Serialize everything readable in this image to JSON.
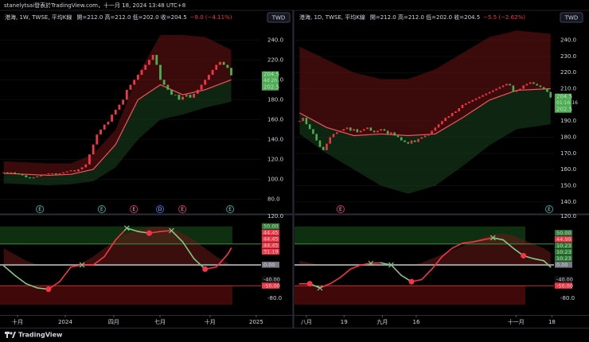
{
  "header": "stanelytsai發表於TradingView.com，十一月 18, 2024 13:48 UTC+8",
  "footer": {
    "brand": "TradingView"
  },
  "chart_data": [
    {
      "type": "candlestick",
      "title": "港海, 1W, TWSE, 平均K線",
      "legend": "開=212.0 高=212.0 低=202.0 收=204.5",
      "change": "−9.0 (−4.11%)",
      "currency": "TWD",
      "up_color": "#f23645",
      "down_color": "#4caf50",
      "ma_color": "#f7525f",
      "xlim": [
        -1,
        69
      ],
      "ylim": [
        66,
        269
      ],
      "yticks": [
        {
          "value": 240,
          "label": "240.0"
        },
        {
          "value": 220,
          "label": "220.0"
        },
        {
          "value": 200,
          "label": "200.0"
        },
        {
          "value": 180,
          "label": "180.0"
        },
        {
          "value": 160,
          "label": "160.0"
        },
        {
          "value": 140,
          "label": "140.0"
        },
        {
          "value": 120,
          "label": "120.0"
        },
        {
          "value": 100,
          "label": "100.0"
        },
        {
          "value": 80,
          "label": "80.0"
        }
      ],
      "xticks": [
        {
          "value": 3.7,
          "label": "十月"
        },
        {
          "value": 16.5,
          "label": "2024"
        },
        {
          "value": 29.5,
          "label": "四月"
        },
        {
          "value": 41.9,
          "label": "七月"
        },
        {
          "value": 55.3,
          "label": "十月"
        },
        {
          "value": 67.7,
          "label": "2025"
        }
      ],
      "closes": [
        107,
        106,
        107,
        106,
        105,
        104,
        102,
        101,
        102,
        103,
        104,
        105,
        106,
        106,
        105,
        106,
        107,
        108,
        109,
        108,
        110,
        112,
        115,
        125,
        135,
        145,
        150,
        155,
        158,
        165,
        170,
        175,
        180,
        190,
        195,
        200,
        205,
        210,
        215,
        220,
        225,
        215,
        200,
        195,
        190,
        185,
        185,
        180,
        183,
        185,
        182,
        186,
        190,
        195,
        200,
        205,
        210,
        215,
        218,
        215,
        212,
        204.5
      ],
      "band_index": [
        0,
        6,
        12,
        18,
        24,
        30,
        36,
        42,
        48,
        54,
        61
      ],
      "upper": [
        118,
        117,
        116,
        116,
        125,
        150,
        205,
        245,
        245,
        243,
        230
      ],
      "ma": [
        106,
        105,
        104,
        105,
        110,
        135,
        180,
        195,
        185,
        190,
        200
      ],
      "lower": [
        96,
        95,
        94,
        95,
        98,
        112,
        140,
        160,
        165,
        172,
        178
      ],
      "last_price": 204.5,
      "countdown": "4d 2h",
      "last_low": 202.5,
      "events": [
        {
          "index": 9.7,
          "label": "E",
          "color": "#26a69a"
        },
        {
          "index": 26.3,
          "label": "E",
          "color": "#26a69a"
        },
        {
          "index": 34.9,
          "label": "E",
          "color": "#e91e63"
        },
        {
          "index": 41.9,
          "label": "D",
          "color": "#2962ff"
        },
        {
          "index": 47.9,
          "label": "E",
          "color": "#e91e63"
        },
        {
          "index": 60.7,
          "label": "E",
          "color": "#26a69a"
        }
      ],
      "oscillator": {
        "ylim": [
          -112,
          120
        ],
        "yticks": [
          {
            "value": 120,
            "label": "120.0"
          },
          {
            "value": -80,
            "label": "-80.0"
          }
        ],
        "upper_zone": [
          50,
          92
        ],
        "lower_zone": [
          -50,
          -95
        ],
        "levels": [
          {
            "value": 50,
            "color": "#3d8b40"
          },
          {
            "value": 0,
            "color": "#9e9e9e"
          },
          {
            "value": -50,
            "color": "#c62828"
          }
        ],
        "index": [
          0,
          3,
          6,
          9,
          12,
          15,
          18,
          21,
          24,
          27,
          30,
          33,
          36,
          39,
          42,
          45,
          48,
          51,
          54,
          57,
          60,
          61
        ],
        "values": [
          -2,
          -25,
          -45,
          -55,
          -58,
          -40,
          -5,
          0,
          0,
          20,
          60,
          88,
          80,
          76,
          80,
          82,
          55,
          15,
          -10,
          -5,
          25,
          40
        ],
        "hump": [
          40,
          25,
          10,
          0,
          0,
          0,
          0,
          5,
          20,
          40,
          60,
          75,
          85,
          90,
          92,
          88,
          75,
          60,
          40,
          20,
          5,
          0
        ],
        "dot_points": [
          4,
          13,
          18
        ],
        "cross_points": [
          7,
          11,
          15
        ],
        "rise_color": "#f23645",
        "fall_color": "#81c784",
        "last_values": [
          {
            "value": 50,
            "label": "50.00",
            "color": "#2e7d32"
          },
          {
            "value": 44.45,
            "label": "44.45",
            "color": "#f23645"
          },
          {
            "value": 44.45,
            "label": "44.45",
            "color": "#f23645"
          },
          {
            "value": 44.45,
            "label": "44.45",
            "color": "#f23645"
          },
          {
            "value": 31.19,
            "label": "31.19",
            "color": "#f23645"
          },
          {
            "value": 0,
            "label": "0.00",
            "color": "#787b86"
          },
          {
            "value": -40,
            "label": "-40.00",
            "color": "#131313"
          },
          {
            "value": -50,
            "label": "-50.00",
            "color": "#f23645"
          }
        ]
      }
    },
    {
      "type": "candlestick",
      "title": "港海, 1D, TWSE, 平均K線",
      "legend": "開=212.0 高=212.0 低=202.0 收=204.5",
      "change": "−5.5 (−2.62%)",
      "currency": "TWD",
      "up_color": "#f23645",
      "down_color": "#4caf50",
      "ma_color": "#f7525f",
      "xlim": [
        -1.5,
        75
      ],
      "ylim": [
        133,
        258
      ],
      "yticks": [
        {
          "value": 240,
          "label": "240.0"
        },
        {
          "value": 230,
          "label": "230.0"
        },
        {
          "value": 220,
          "label": "220.0"
        },
        {
          "value": 210,
          "label": "210.0"
        },
        {
          "value": 190,
          "label": "190.0"
        },
        {
          "value": 180,
          "label": "180.0"
        },
        {
          "value": 170,
          "label": "170.0"
        },
        {
          "value": 160,
          "label": "160.0"
        },
        {
          "value": 150,
          "label": "150.0"
        },
        {
          "value": 140,
          "label": "140.0"
        }
      ],
      "xticks": [
        {
          "value": 2,
          "label": "八月"
        },
        {
          "value": 13.1,
          "label": "19"
        },
        {
          "value": 24.4,
          "label": "九月"
        },
        {
          "value": 34.4,
          "label": "16"
        },
        {
          "value": 63.8,
          "label": "十一月"
        },
        {
          "value": 74.4,
          "label": "18"
        }
      ],
      "closes": [
        190,
        192,
        188,
        185,
        182,
        178,
        174,
        172,
        176,
        180,
        182,
        183,
        184,
        185,
        186,
        184,
        185,
        183,
        184,
        185,
        186,
        184,
        183,
        184,
        185,
        184,
        182,
        183,
        181,
        180,
        178,
        177,
        176,
        178,
        177,
        179,
        180,
        181,
        182,
        184,
        186,
        188,
        190,
        192,
        193,
        195,
        196,
        198,
        200,
        201,
        202,
        203,
        204,
        205,
        206,
        207,
        208,
        209,
        210,
        211,
        212,
        213,
        212,
        208,
        209,
        210,
        212,
        213,
        214,
        213,
        212,
        211,
        210,
        208,
        204.5
      ],
      "band_index": [
        0,
        8,
        16,
        24,
        32,
        40,
        48,
        56,
        64,
        74
      ],
      "upper": [
        236,
        228,
        220,
        216,
        216,
        222,
        232,
        242,
        246,
        244
      ],
      "ma": [
        195,
        186,
        181,
        182,
        181,
        182,
        192,
        203,
        209,
        210
      ],
      "lower": [
        182,
        170,
        160,
        150,
        145,
        150,
        162,
        175,
        185,
        188
      ],
      "last_price": 204.5,
      "countdown": "01:16:16",
      "last_low": 202.5,
      "events": [
        {
          "index": 12.1,
          "label": "E",
          "color": "#e91e63"
        },
        {
          "index": 73.6,
          "label": "E",
          "color": "#26a69a"
        }
      ],
      "oscillator": {
        "ylim": [
          -112,
          120
        ],
        "yticks": [
          {
            "value": 120,
            "label": "120.0"
          },
          {
            "value": -80,
            "label": "-80.0"
          }
        ],
        "upper_zone": [
          50,
          92
        ],
        "lower_zone": [
          -50,
          -95
        ],
        "levels": [
          {
            "value": 50,
            "color": "#3d8b40"
          },
          {
            "value": 0,
            "color": "#9e9e9e"
          },
          {
            "value": -50,
            "color": "#c62828"
          }
        ],
        "index": [
          0,
          3,
          6,
          9,
          12,
          15,
          18,
          21,
          24,
          27,
          30,
          33,
          36,
          39,
          42,
          45,
          48,
          51,
          54,
          57,
          60,
          63,
          66,
          69,
          72,
          74
        ],
        "values": [
          -45,
          -45,
          -55,
          -45,
          -30,
          -10,
          0,
          4,
          5,
          0,
          -25,
          -40,
          -35,
          -10,
          20,
          40,
          52,
          55,
          60,
          65,
          60,
          40,
          22,
          15,
          10,
          -5
        ],
        "hump": [
          10,
          5,
          0,
          0,
          0,
          0,
          0,
          0,
          0,
          0,
          0,
          0,
          5,
          15,
          25,
          35,
          45,
          55,
          65,
          72,
          75,
          70,
          60,
          50,
          40,
          30
        ],
        "dot_points": [
          1,
          11,
          22
        ],
        "cross_points": [
          2,
          7,
          9,
          19
        ],
        "rise_color": "#f23645",
        "fall_color": "#81c784",
        "last_values": [
          {
            "value": 50,
            "label": "50.00",
            "color": "#2e7d32"
          },
          {
            "value": 44.99,
            "label": "44.99",
            "color": "#f23645"
          },
          {
            "value": 10.23,
            "label": "10.23",
            "color": "#2e7d32"
          },
          {
            "value": 10.23,
            "label": "10.23",
            "color": "#2e7d32"
          },
          {
            "value": 10.23,
            "label": "10.23",
            "color": "#2e7d32"
          },
          {
            "value": 0,
            "label": "0.00",
            "color": "#787b86"
          },
          {
            "value": -40,
            "label": "-40.00",
            "color": "#131313"
          },
          {
            "value": -50,
            "label": "-50.00",
            "color": "#f23645"
          }
        ]
      }
    }
  ]
}
